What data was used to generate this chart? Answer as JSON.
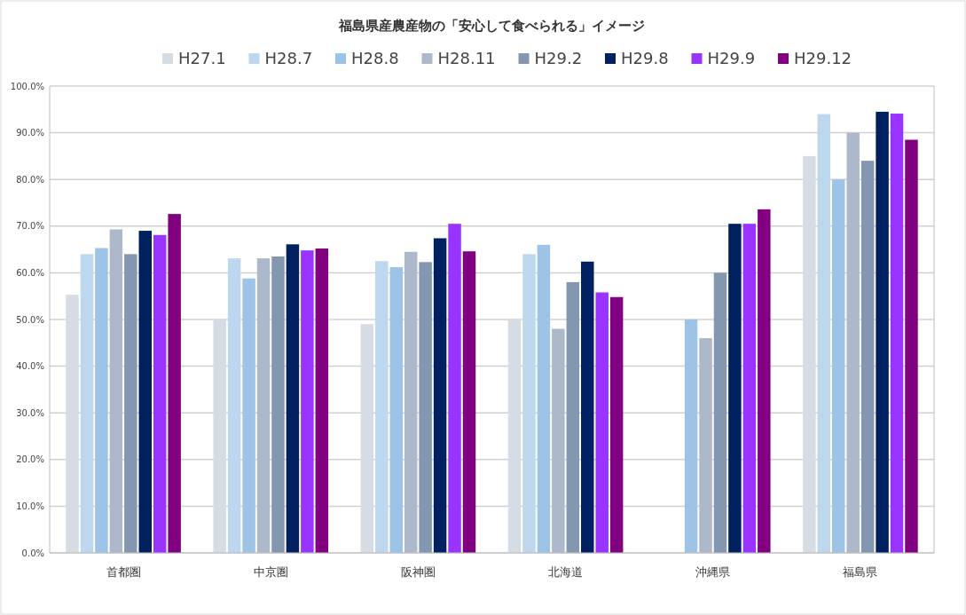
{
  "chart_data": {
    "type": "bar",
    "title": "福島県産農産物の「安心して食べられる」イメージ",
    "categories": [
      "首都圏",
      "中京圏",
      "阪神圏",
      "北海道",
      "沖縄県",
      "福島県"
    ],
    "series": [
      {
        "name": "H27.1",
        "color": "#d6dce4",
        "values": [
          55.3,
          50,
          49,
          50,
          null,
          85
        ]
      },
      {
        "name": "H28.7",
        "color": "#bdd7ee",
        "values": [
          64,
          63.1,
          62.5,
          64,
          null,
          94
        ]
      },
      {
        "name": "H28.8",
        "color": "#9dc3e6",
        "values": [
          65.3,
          58.8,
          61.2,
          66,
          50,
          80
        ]
      },
      {
        "name": "H28.11",
        "color": "#adb9ca",
        "values": [
          69.3,
          63.1,
          64.5,
          48,
          46,
          90
        ]
      },
      {
        "name": "H29.2",
        "color": "#8497b0",
        "values": [
          64,
          63.5,
          62.3,
          58,
          60,
          84
        ]
      },
      {
        "name": "H29.8",
        "color": "#002060",
        "values": [
          69,
          66.1,
          67.4,
          62.4,
          70.5,
          94.5
        ]
      },
      {
        "name": "H29.9",
        "color": "#9933ff",
        "values": [
          68.1,
          64.8,
          70.5,
          55.8,
          70.5,
          94.1
        ]
      },
      {
        "name": "H29.12",
        "color": "#800080",
        "values": [
          72.6,
          65.2,
          64.6,
          54.8,
          73.6,
          88.5
        ]
      }
    ],
    "ylim": [
      0,
      100
    ],
    "yticks": [
      {
        "value": 0,
        "label": "0.0%"
      },
      {
        "value": 10,
        "label": "10.0%"
      },
      {
        "value": 20,
        "label": "20.0%"
      },
      {
        "value": 30,
        "label": "30.0%"
      },
      {
        "value": 40,
        "label": "40.0%"
      },
      {
        "value": 50,
        "label": "50.0%"
      },
      {
        "value": 60,
        "label": "60.0%"
      },
      {
        "value": 70,
        "label": "70.0%"
      },
      {
        "value": 80,
        "label": "80.0%"
      },
      {
        "value": 90,
        "label": "90.0%"
      },
      {
        "value": 100,
        "label": "100.0%"
      }
    ],
    "grid": "y",
    "legend": "top"
  }
}
